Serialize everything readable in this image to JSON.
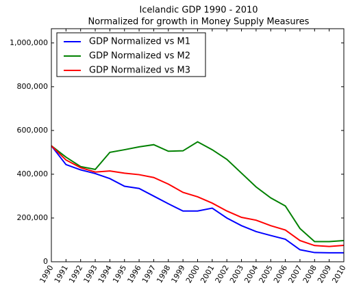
{
  "chart_data": {
    "type": "line",
    "title": "Icelandic GDP 1990 - 2010",
    "subtitle": "Normalized for growth in Money Supply Measures",
    "x": [
      1990,
      1991,
      1992,
      1993,
      1994,
      1995,
      1996,
      1997,
      1998,
      1999,
      2000,
      2001,
      2002,
      2003,
      2004,
      2005,
      2006,
      2007,
      2008,
      2009,
      2010
    ],
    "xlim": [
      1990,
      2010
    ],
    "xticks": [
      1990,
      1991,
      1992,
      1993,
      1994,
      1995,
      1996,
      1997,
      1998,
      1999,
      2000,
      2001,
      2002,
      2003,
      2004,
      2005,
      2006,
      2007,
      2008,
      2009,
      2010
    ],
    "ylim": [
      0,
      1065000
    ],
    "yticks": [
      0,
      {
        "value": 200000,
        "label": "200,000"
      },
      {
        "value": 400000,
        "label": "400,000"
      },
      {
        "value": 600000,
        "label": "600,000"
      },
      {
        "value": 800000,
        "label": "800,000"
      },
      {
        "value": 1000000,
        "label": "1,000,000"
      }
    ],
    "legend": "upper left",
    "series": [
      {
        "name": "GDP Normalized vs M1",
        "color": "#0000ff",
        "values": [
          530000,
          444000,
          420000,
          403000,
          380000,
          345000,
          335000,
          300000,
          265000,
          232000,
          232000,
          245000,
          200000,
          165000,
          138000,
          120000,
          103000,
          55000,
          42000,
          41000,
          41000
        ]
      },
      {
        "name": "GDP Normalized vs M2",
        "color": "#008000",
        "values": [
          530000,
          478000,
          435000,
          422000,
          500000,
          512000,
          525000,
          535000,
          505000,
          507000,
          548000,
          512000,
          468000,
          405000,
          342000,
          292000,
          255000,
          152000,
          92000,
          92000,
          97000
        ]
      },
      {
        "name": "GDP Normalized vs M3",
        "color": "#ff0000",
        "values": [
          530000,
          465000,
          430000,
          410000,
          415000,
          405000,
          398000,
          385000,
          355000,
          317000,
          297000,
          268000,
          232000,
          203000,
          190000,
          165000,
          145000,
          97000,
          74000,
          70000,
          75000
        ]
      }
    ]
  }
}
